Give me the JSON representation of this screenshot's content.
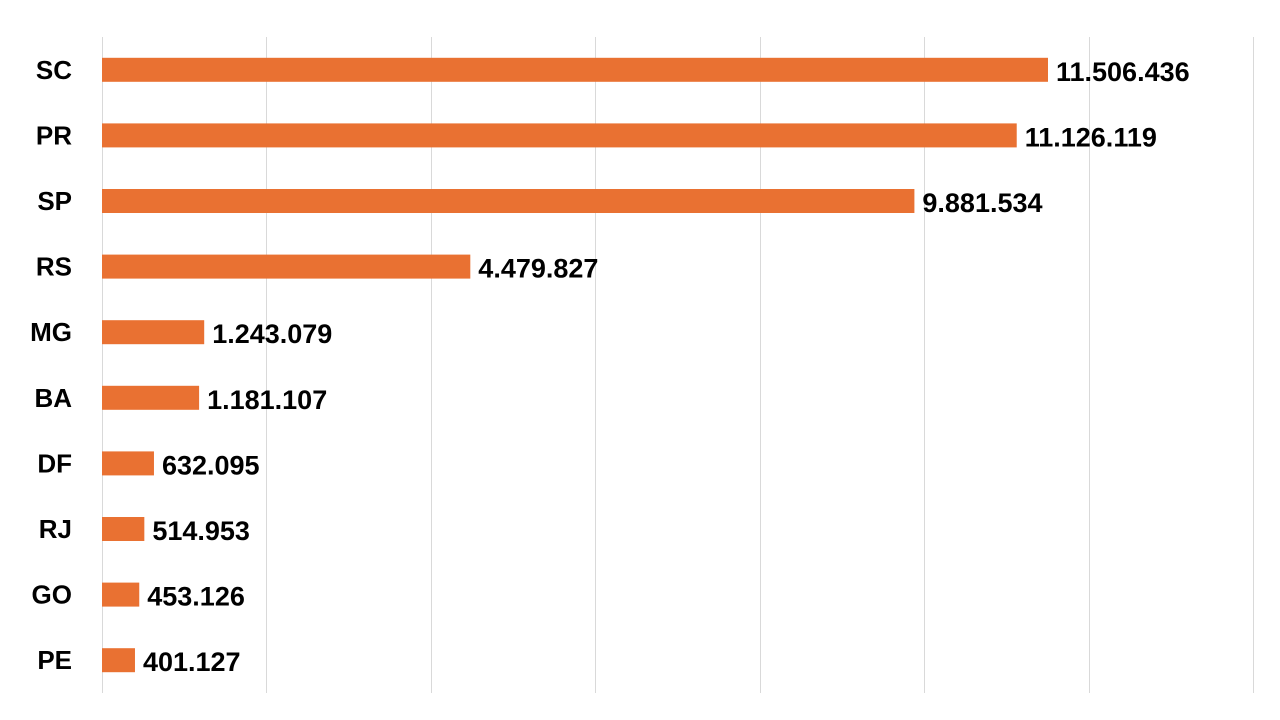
{
  "chart_data": {
    "type": "bar",
    "orientation": "horizontal",
    "categories": [
      "SC",
      "PR",
      "SP",
      "RS",
      "MG",
      "BA",
      "DF",
      "RJ",
      "GO",
      "PE"
    ],
    "values": [
      11506436,
      11126119,
      9881534,
      4479827,
      1243079,
      1181107,
      632095,
      514953,
      453126,
      401127
    ],
    "value_labels": [
      "11.506.436",
      "11.126.119",
      "9.881.534",
      "4.479.827",
      "1.243.079",
      "1.181.107",
      "632.095",
      "514.953",
      "453.126",
      "401.127"
    ],
    "title": "",
    "xlabel": "",
    "ylabel": "",
    "xlim": [
      0,
      14000000
    ],
    "grid": true,
    "bar_color": "#E97132",
    "legend": "none"
  }
}
